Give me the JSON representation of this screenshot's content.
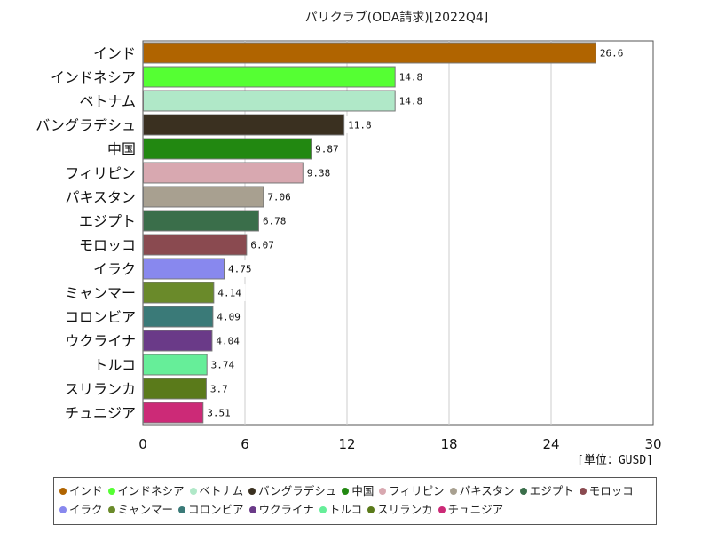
{
  "chart_data": {
    "type": "bar",
    "orientation": "horizontal",
    "title": "パリクラブ(ODA請求)[2022Q4]",
    "unit_label": "[単位：GUSD]",
    "xlim": [
      0,
      30
    ],
    "xticks": [
      0,
      6,
      12,
      18,
      24,
      30
    ],
    "grid": true,
    "legend_position": "bottom",
    "categories": [
      "インド",
      "インドネシア",
      "ベトナム",
      "バングラデシュ",
      "中国",
      "フィリピン",
      "パキスタン",
      "エジプト",
      "モロッコ",
      "イラク",
      "ミャンマー",
      "コロンビア",
      "ウクライナ",
      "トルコ",
      "スリランカ",
      "チュニジア"
    ],
    "values": [
      26.6,
      14.8,
      14.8,
      11.8,
      9.87,
      9.38,
      7.06,
      6.78,
      6.07,
      4.75,
      4.14,
      4.09,
      4.04,
      3.74,
      3.7,
      3.51
    ],
    "value_labels": [
      "26.6",
      "14.8",
      "14.8",
      "11.8",
      "9.87",
      "9.38",
      "7.06",
      "6.78",
      "6.07",
      "4.75",
      "4.14",
      "4.09",
      "4.04",
      "3.74",
      "3.7",
      "3.51"
    ],
    "colors": [
      "#b06400",
      "#55ff33",
      "#b0e8c8",
      "#3a3020",
      "#228811",
      "#d8a8b0",
      "#a8a090",
      "#3a6e4a",
      "#8a4a50",
      "#8888ee",
      "#6a8a2a",
      "#3a7a78",
      "#6a3a88",
      "#66ee99",
      "#5a7a1a",
      "#cc2a77"
    ]
  }
}
